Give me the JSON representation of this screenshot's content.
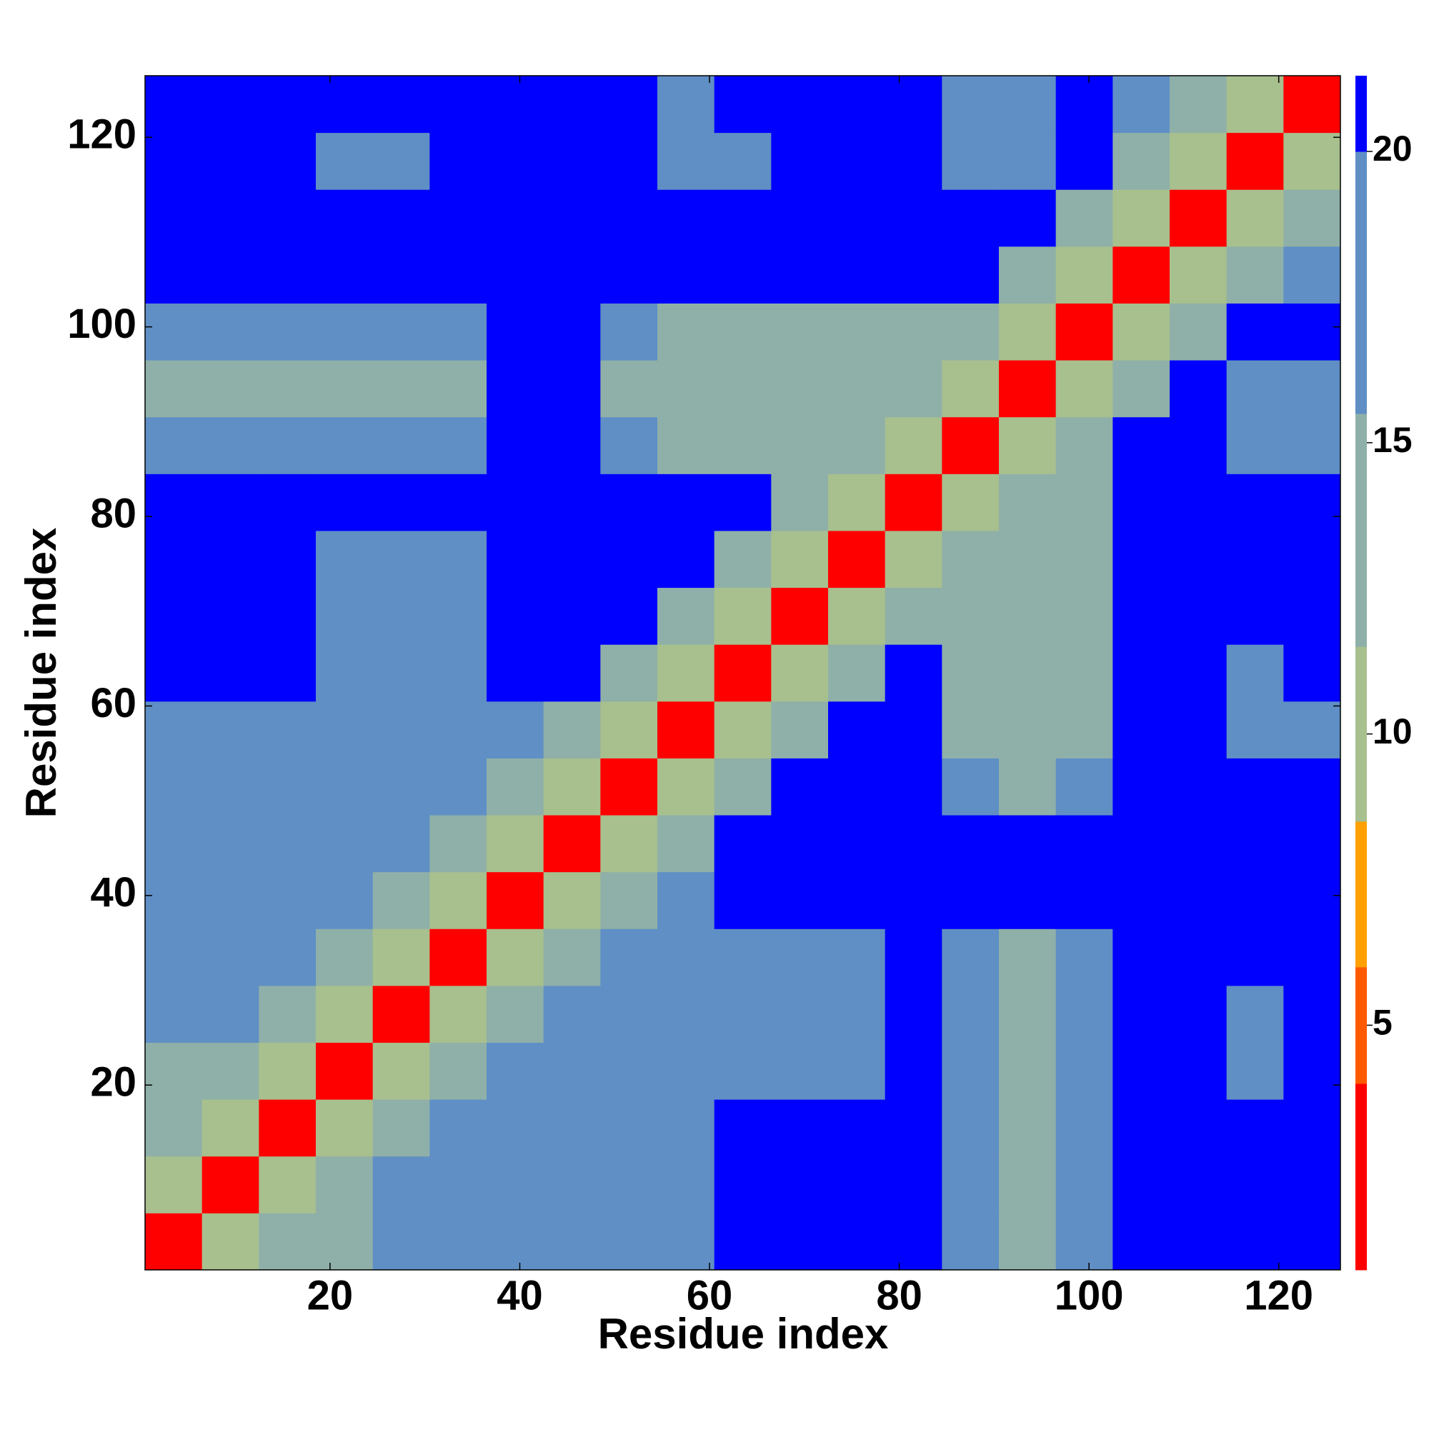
{
  "chart_data": {
    "type": "heatmap",
    "xlabel": "Residue index",
    "ylabel": "Residue index",
    "x": [
      3.5,
      9.5,
      15.5,
      21.5,
      27.5,
      33.5,
      39.5,
      45.5,
      51.5,
      57.5,
      63.5,
      69.5,
      75.5,
      81.5,
      87.5,
      93.5,
      99.5,
      105.5,
      111.5,
      117.5,
      123.5
    ],
    "y": [
      3.5,
      9.5,
      15.5,
      21.5,
      27.5,
      33.5,
      39.5,
      45.5,
      51.5,
      57.5,
      63.5,
      69.5,
      75.5,
      81.5,
      87.5,
      93.5,
      99.5,
      105.5,
      111.5,
      117.5,
      123.5
    ],
    "z": [
      [
        3,
        9,
        14,
        15,
        16,
        16,
        18,
        18,
        18,
        18,
        21,
        21,
        21,
        21,
        17,
        15,
        17,
        21,
        21,
        21,
        21
      ],
      [
        9,
        3,
        9,
        14,
        16,
        16,
        18,
        18,
        18,
        18,
        21,
        21,
        21,
        21,
        16,
        15,
        16,
        21,
        21,
        21,
        21
      ],
      [
        14,
        9,
        3,
        9,
        14,
        16,
        18,
        18,
        18,
        18,
        21,
        21,
        21,
        21,
        16,
        15,
        16,
        21,
        21,
        21,
        21
      ],
      [
        15,
        14,
        9,
        3,
        9,
        14,
        18,
        16,
        16,
        16,
        19,
        19,
        19,
        21,
        16,
        15,
        16,
        21,
        21,
        19,
        21
      ],
      [
        16,
        16,
        14,
        9,
        3,
        9,
        14,
        16,
        16,
        16,
        19,
        19,
        19,
        21,
        16,
        15,
        16,
        21,
        21,
        19,
        21
      ],
      [
        16,
        16,
        16,
        14,
        9,
        3,
        9,
        14,
        16,
        16,
        19,
        19,
        19,
        21,
        16,
        15,
        16,
        21,
        21,
        20,
        21
      ],
      [
        18,
        18,
        18,
        18,
        14,
        9,
        3,
        9,
        14,
        18,
        21,
        21,
        21,
        21,
        21,
        21,
        21,
        21,
        21,
        21,
        21
      ],
      [
        18,
        18,
        18,
        16,
        16,
        14,
        9,
        3,
        9,
        14,
        21,
        21,
        21,
        21,
        21,
        21,
        21,
        21,
        21,
        21,
        21
      ],
      [
        18,
        18,
        18,
        16,
        16,
        16,
        14,
        9,
        3,
        9,
        14,
        21,
        21,
        21,
        17,
        15,
        17,
        21,
        21,
        21,
        21
      ],
      [
        18,
        18,
        18,
        16,
        16,
        16,
        18,
        14,
        9,
        3,
        9,
        14,
        21,
        21,
        15,
        15,
        15,
        21,
        21,
        19,
        19
      ],
      [
        21,
        21,
        21,
        19,
        19,
        19,
        21,
        21,
        14,
        9,
        3,
        9,
        14,
        21,
        15,
        15,
        15,
        21,
        21,
        19,
        21
      ],
      [
        21,
        21,
        21,
        19,
        19,
        19,
        21,
        21,
        21,
        14,
        9,
        3,
        9,
        14,
        15,
        15,
        15,
        21,
        21,
        21,
        21
      ],
      [
        21,
        21,
        21,
        19,
        19,
        19,
        21,
        21,
        21,
        21,
        14,
        9,
        3,
        9,
        14,
        15,
        15,
        21,
        21,
        21,
        21
      ],
      [
        21,
        21,
        21,
        21,
        21,
        21,
        21,
        21,
        21,
        21,
        21,
        14,
        9,
        3,
        9,
        14,
        15,
        21,
        21,
        21,
        21
      ],
      [
        17,
        16,
        16,
        16,
        16,
        16,
        21,
        21,
        17,
        15,
        15,
        15,
        14,
        9,
        3,
        9,
        14,
        21,
        21,
        19,
        19
      ],
      [
        15,
        15,
        15,
        15,
        15,
        15,
        21,
        21,
        15,
        15,
        15,
        15,
        15,
        14,
        9,
        3,
        9,
        14,
        21,
        19,
        19
      ],
      [
        17,
        16,
        16,
        16,
        16,
        16,
        21,
        21,
        17,
        15,
        15,
        15,
        15,
        15,
        14,
        9,
        3,
        9,
        14,
        21,
        21
      ],
      [
        21,
        21,
        21,
        21,
        21,
        21,
        21,
        21,
        21,
        21,
        21,
        21,
        21,
        21,
        21,
        14,
        9,
        3,
        9,
        14,
        18
      ],
      [
        21,
        21,
        21,
        21,
        21,
        21,
        21,
        21,
        21,
        21,
        21,
        21,
        21,
        21,
        21,
        21,
        14,
        9,
        3,
        9,
        14
      ],
      [
        21,
        21,
        21,
        19,
        19,
        20,
        21,
        21,
        21,
        19,
        19,
        21,
        21,
        21,
        19,
        19,
        21,
        14,
        9,
        3,
        9
      ],
      [
        21,
        21,
        21,
        21,
        21,
        21,
        21,
        21,
        21,
        19,
        21,
        21,
        21,
        21,
        19,
        19,
        21,
        18,
        14,
        9,
        3
      ]
    ],
    "xlim": [
      0.5,
      126.5
    ],
    "ylim": [
      0.5,
      126.5
    ],
    "xticks": [
      20,
      40,
      60,
      80,
      100,
      120
    ],
    "yticks": [
      20,
      40,
      60,
      80,
      100,
      120
    ],
    "zlim": [
      0.8,
      21.3
    ],
    "zticks": [
      5,
      10,
      15,
      20
    ],
    "color_levels": [
      0.8,
      4,
      6,
      8.5,
      11.5,
      15.5,
      20,
      21.3
    ],
    "colors": [
      "#ff0000",
      "#ff5a00",
      "#ffa000",
      "#a8bf8e",
      "#8fb0a8",
      "#5f8fc5",
      "#0000ff"
    ]
  }
}
